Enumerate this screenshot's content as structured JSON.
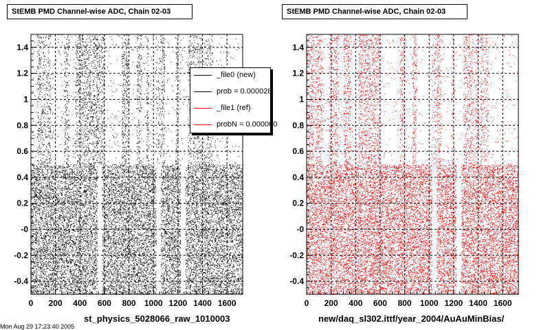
{
  "footer_text": "Mon Aug 29 17:23:40 2005",
  "colors": {
    "new": "#000000",
    "ref": "#ff0000"
  },
  "legend": [
    {
      "label": "_file0 (new)",
      "color": "#000000"
    },
    {
      "label": "prob = 0.000028",
      "color": "#000000"
    },
    {
      "label": "_file1 (ref)",
      "color": "#ff0000"
    },
    {
      "label": "probN = 0.000000",
      "color": "#ff0000"
    }
  ],
  "chart_data": [
    {
      "type": "scatter",
      "title": "StEMB PMD Channel-wise ADC, Chain 02-03",
      "xlabel": "st_physics_5028066_raw_1010003",
      "ylabel": "",
      "xlim": [
        0,
        1728
      ],
      "ylim": [
        -0.5,
        1.5
      ],
      "x_ticks": [
        0,
        200,
        400,
        600,
        800,
        1000,
        1200,
        1400,
        1600
      ],
      "y_ticks": [
        -0.4,
        -0.2,
        0,
        0.2,
        0.4,
        0.6,
        0.8,
        1,
        1.2,
        1.4
      ],
      "y_tick_labels": [
        "-0.4",
        "-0.2",
        "-0",
        "0.2",
        "0.4",
        "0.6",
        "0.8",
        "1",
        "1.2",
        "1.4"
      ],
      "grid": true,
      "series_color": "#000000",
      "lower_band_y": [
        -0.5,
        0.5
      ],
      "upper_band_y": [
        0.5,
        1.5
      ],
      "lower_empty_x_ranges": [
        [
          540,
          580
        ],
        [
          1020,
          1060
        ],
        [
          1220,
          1260
        ]
      ],
      "upper_dense_x_ranges": [
        [
          50,
          110
        ],
        [
          130,
          160
        ],
        [
          270,
          310
        ],
        [
          360,
          400
        ],
        [
          400,
          600
        ],
        [
          740,
          790
        ],
        [
          860,
          900
        ],
        [
          940,
          960
        ],
        [
          1060,
          1090
        ],
        [
          1180,
          1200
        ],
        [
          1290,
          1310
        ],
        [
          1320,
          1340
        ],
        [
          1350,
          1400
        ],
        [
          1440,
          1480
        ]
      ],
      "upper_sparse_x_ranges": [
        [
          0,
          50
        ],
        [
          160,
          270
        ],
        [
          310,
          360
        ],
        [
          600,
          740
        ],
        [
          800,
          860
        ],
        [
          900,
          940
        ],
        [
          960,
          1020
        ],
        [
          1090,
          1180
        ],
        [
          1200,
          1280
        ],
        [
          1480,
          1728
        ]
      ]
    },
    {
      "type": "scatter",
      "title": "StEMB PMD Channel-wise ADC, Chain 02-03",
      "xlabel": "new/daq_sl302.ittf/year_2004/AuAuMinBias/",
      "ylabel": "",
      "xlim": [
        0,
        1728
      ],
      "ylim": [
        -0.5,
        1.5
      ],
      "x_ticks": [
        0,
        200,
        400,
        600,
        800,
        1000,
        1200,
        1400,
        1600
      ],
      "y_ticks": [
        -0.4,
        -0.2,
        0,
        0.2,
        0.4,
        0.6,
        0.8,
        1,
        1.2,
        1.4
      ],
      "y_tick_labels": [
        "-0.4",
        "-0.2",
        "-0",
        "0.2",
        "0.4",
        "0.6",
        "0.8",
        "1",
        "1.2",
        "1.4"
      ],
      "grid": true,
      "series_color": "#ff0000",
      "lower_band_y": [
        -0.5,
        0.5
      ],
      "upper_band_y": [
        0.5,
        1.5
      ],
      "lower_empty_x_ranges": [
        [
          1020,
          1060
        ],
        [
          1220,
          1260
        ]
      ],
      "upper_dense_x_ranges": [
        [
          0,
          60
        ],
        [
          70,
          130
        ],
        [
          180,
          260
        ],
        [
          300,
          360
        ],
        [
          420,
          600
        ],
        [
          760,
          790
        ],
        [
          860,
          890
        ],
        [
          1060,
          1090
        ],
        [
          1190,
          1200
        ],
        [
          1280,
          1310
        ],
        [
          1320,
          1350
        ],
        [
          1380,
          1400
        ],
        [
          1420,
          1440
        ],
        [
          1460,
          1480
        ]
      ],
      "upper_sparse_x_ranges": [
        [
          60,
          70
        ],
        [
          130,
          180
        ],
        [
          260,
          300
        ],
        [
          360,
          420
        ],
        [
          600,
          760
        ],
        [
          800,
          860
        ],
        [
          900,
          1020
        ],
        [
          1100,
          1180
        ],
        [
          1200,
          1280
        ],
        [
          1480,
          1728
        ]
      ]
    }
  ]
}
